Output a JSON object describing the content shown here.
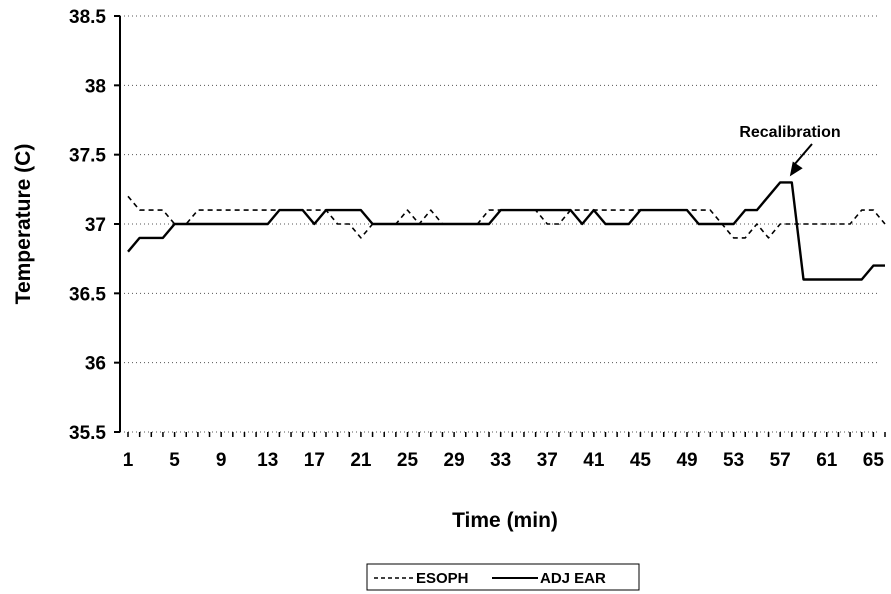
{
  "chart_data": {
    "type": "line",
    "title": "",
    "xlabel": "Time (min)",
    "ylabel": "Temperature (C)",
    "ylim": [
      35.5,
      38.5
    ],
    "xlim": [
      1,
      66
    ],
    "yticks": [
      "35.5",
      "36",
      "36.5",
      "37",
      "37.5",
      "38",
      "38.5"
    ],
    "xticks": [
      "1",
      "5",
      "9",
      "13",
      "17",
      "21",
      "25",
      "29",
      "33",
      "37",
      "41",
      "45",
      "49",
      "53",
      "57",
      "61",
      "65"
    ],
    "grid": "horizontal dotted",
    "legend_position": "bottom",
    "annotation": {
      "text": "Recalibration",
      "x": 58,
      "y": 37.3
    },
    "series": [
      {
        "name": "ESOPH",
        "style": "dashed",
        "color": "#000000",
        "x": [
          1,
          2,
          3,
          4,
          5,
          6,
          7,
          8,
          9,
          10,
          11,
          12,
          13,
          14,
          15,
          16,
          17,
          18,
          19,
          20,
          21,
          22,
          23,
          24,
          25,
          26,
          27,
          28,
          29,
          30,
          31,
          32,
          33,
          34,
          35,
          36,
          37,
          38,
          39,
          40,
          41,
          42,
          43,
          44,
          45,
          46,
          47,
          48,
          49,
          50,
          51,
          52,
          53,
          54,
          55,
          56,
          57,
          58,
          59,
          60,
          61,
          62,
          63,
          64,
          65,
          66
        ],
        "values": [
          37.2,
          37.1,
          37.1,
          37.1,
          37.0,
          37.0,
          37.1,
          37.1,
          37.1,
          37.1,
          37.1,
          37.1,
          37.1,
          37.1,
          37.1,
          37.1,
          37.1,
          37.1,
          37.0,
          37.0,
          36.9,
          37.0,
          37.0,
          37.0,
          37.1,
          37.0,
          37.1,
          37.0,
          37.0,
          37.0,
          37.0,
          37.1,
          37.1,
          37.1,
          37.1,
          37.1,
          37.0,
          37.0,
          37.1,
          37.1,
          37.1,
          37.1,
          37.1,
          37.1,
          37.1,
          37.1,
          37.1,
          37.1,
          37.1,
          37.1,
          37.1,
          37.0,
          36.9,
          36.9,
          37.0,
          36.9,
          37.0,
          37.0,
          37.0,
          37.0,
          37.0,
          37.0,
          37.0,
          37.1,
          37.1,
          37.0
        ]
      },
      {
        "name": "ADJ EAR",
        "style": "solid",
        "color": "#000000",
        "x": [
          1,
          2,
          3,
          4,
          5,
          6,
          7,
          8,
          9,
          10,
          11,
          12,
          13,
          14,
          15,
          16,
          17,
          18,
          19,
          20,
          21,
          22,
          23,
          24,
          25,
          26,
          27,
          28,
          29,
          30,
          31,
          32,
          33,
          34,
          35,
          36,
          37,
          38,
          39,
          40,
          41,
          42,
          43,
          44,
          45,
          46,
          47,
          48,
          49,
          50,
          51,
          52,
          53,
          54,
          55,
          56,
          57,
          58,
          59,
          60,
          61,
          62,
          63,
          64,
          65,
          66
        ],
        "values": [
          36.8,
          36.9,
          36.9,
          36.9,
          37.0,
          37.0,
          37.0,
          37.0,
          37.0,
          37.0,
          37.0,
          37.0,
          37.0,
          37.1,
          37.1,
          37.1,
          37.0,
          37.1,
          37.1,
          37.1,
          37.1,
          37.0,
          37.0,
          37.0,
          37.0,
          37.0,
          37.0,
          37.0,
          37.0,
          37.0,
          37.0,
          37.0,
          37.1,
          37.1,
          37.1,
          37.1,
          37.1,
          37.1,
          37.1,
          37.0,
          37.1,
          37.0,
          37.0,
          37.0,
          37.1,
          37.1,
          37.1,
          37.1,
          37.1,
          37.0,
          37.0,
          37.0,
          37.0,
          37.1,
          37.1,
          37.2,
          37.3,
          37.3,
          36.6,
          36.6,
          36.6,
          36.6,
          36.6,
          36.6,
          36.7,
          36.7
        ]
      }
    ]
  }
}
